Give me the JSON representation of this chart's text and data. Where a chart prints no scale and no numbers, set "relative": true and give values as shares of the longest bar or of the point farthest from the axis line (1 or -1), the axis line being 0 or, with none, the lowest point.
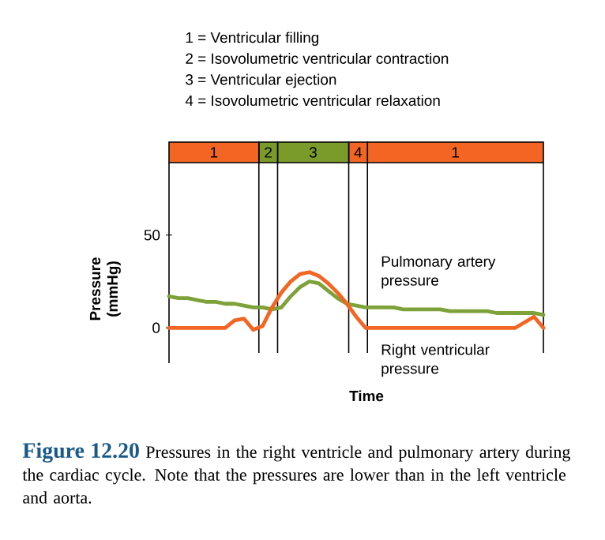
{
  "chart_data": [
    {
      "type": "bar",
      "orientation": "horizontal",
      "stacked": true,
      "relative": true,
      "legend": false,
      "categories": [
        null
      ],
      "annotations": [
        "1 = Ventricular filling",
        "2 = Isovolumetric ventricular contraction",
        "3 = Ventricular ejection",
        "4 = Isovolumetric ventricular relaxation"
      ],
      "series": [
        {
          "name": "1",
          "color": "#f26522",
          "values": [
            0.24
          ]
        },
        {
          "name": "2",
          "color": "#7a9a2a",
          "values": [
            0.05
          ]
        },
        {
          "name": "3",
          "color": "#7a9a2a",
          "values": [
            0.19
          ]
        },
        {
          "name": "4",
          "color": "#f26522",
          "values": [
            0.05
          ]
        },
        {
          "name": "1",
          "color": "#f26522",
          "values": [
            0.47
          ]
        }
      ]
    },
    {
      "type": "line",
      "title": "Figure 12.20",
      "xlabel": "Time",
      "ylabel": "Pressure (mmHg)",
      "legend": false,
      "marker": "none",
      "line_style": "solid",
      "annotations": [
        "Pressures in the right ventricle and pulmonary artery during the cardiac cycle. Note that the pressures are lower than in the left ventricle and aorta."
      ],
      "categories": [
        null,
        null,
        null,
        null,
        null,
        null,
        null,
        null,
        null,
        null,
        null,
        null,
        null,
        null,
        null,
        null,
        null,
        null,
        null,
        null,
        null,
        null,
        null,
        null,
        null,
        null,
        null,
        null,
        null,
        null,
        null,
        null,
        null,
        null,
        null,
        null,
        null,
        null,
        null,
        null,
        null
      ],
      "ylim": [
        -19,
        89
      ],
      "yticks": [
        0,
        50
      ],
      "series": [
        {
          "name": "Pulmonary artery pressure",
          "color": "#7ea23a",
          "values": [
            17,
            16,
            16,
            15,
            14,
            14,
            13,
            13,
            12,
            11,
            11,
            10,
            11,
            17,
            22,
            25,
            24,
            20,
            16,
            13,
            12,
            11,
            11,
            11,
            11,
            10,
            10,
            10,
            10,
            10,
            9,
            9,
            9,
            9,
            9,
            8,
            8,
            8,
            8,
            8,
            7
          ]
        },
        {
          "name": "Right ventricular pressure",
          "color": "#f26522",
          "values": [
            0,
            0,
            0,
            0,
            0,
            0,
            0,
            4,
            5,
            -1,
            1,
            11,
            19,
            25,
            29,
            30,
            28,
            24,
            19,
            13,
            6,
            0,
            0,
            0,
            0,
            0,
            0,
            0,
            0,
            0,
            0,
            0,
            0,
            0,
            0,
            0,
            0,
            0,
            3,
            6,
            0
          ]
        }
      ]
    }
  ]
}
